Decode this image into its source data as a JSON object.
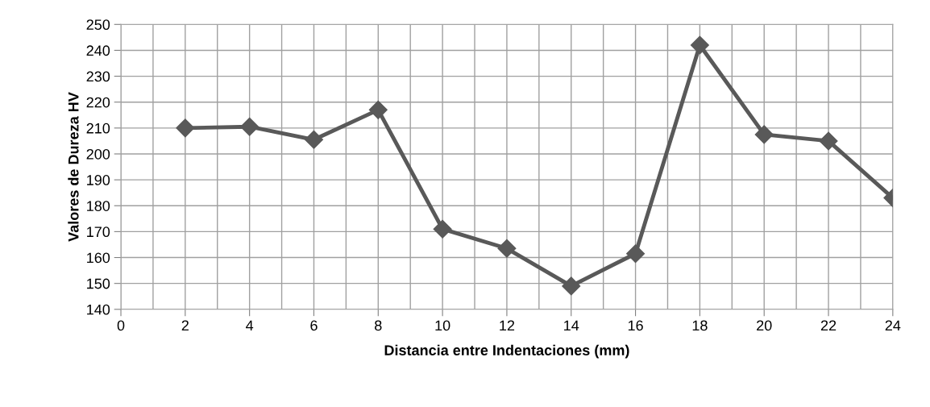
{
  "chart_data": {
    "type": "line",
    "xlabel": "Distancia entre Indentaciones (mm)",
    "ylabel": "Valores de Dureza HV",
    "x": [
      2,
      4,
      6,
      8,
      10,
      12,
      14,
      16,
      18,
      20,
      22,
      24
    ],
    "series": [
      {
        "color": "#595959",
        "values": [
          210,
          210.5,
          205.5,
          217,
          171,
          163.5,
          149,
          161.5,
          242,
          207.5,
          205,
          183
        ]
      }
    ],
    "xlim": [
      0,
      24
    ],
    "ylim": [
      140,
      250
    ],
    "xticks": [
      0,
      {
        "value": 1,
        "label": null
      },
      2,
      {
        "value": 3,
        "label": null
      },
      4,
      {
        "value": 5,
        "label": null
      },
      6,
      {
        "value": 7,
        "label": null
      },
      8,
      {
        "value": 9,
        "label": null
      },
      10,
      {
        "value": 11,
        "label": null
      },
      12,
      {
        "value": 13,
        "label": null
      },
      14,
      {
        "value": 15,
        "label": null
      },
      16,
      {
        "value": 17,
        "label": null
      },
      18,
      {
        "value": 19,
        "label": null
      },
      20,
      {
        "value": 21,
        "label": null
      },
      22,
      {
        "value": 23,
        "label": null
      },
      24
    ],
    "yticks": [
      140,
      150,
      160,
      170,
      180,
      190,
      200,
      210,
      220,
      230,
      240,
      250
    ],
    "grid": true,
    "marker": "diamond",
    "line_style": "solid",
    "legend": false
  }
}
